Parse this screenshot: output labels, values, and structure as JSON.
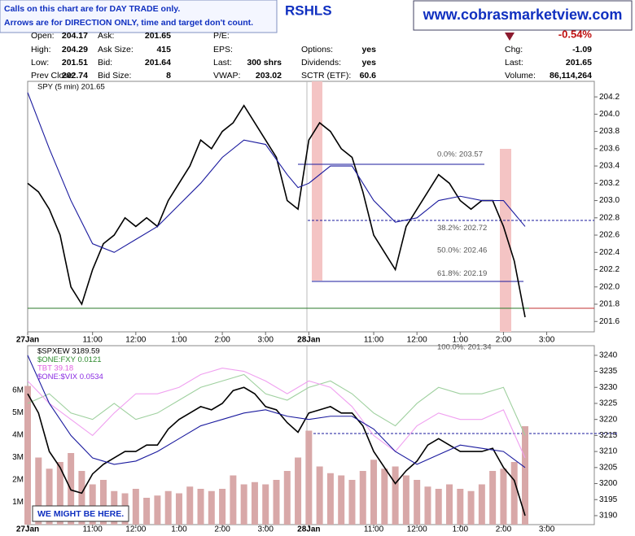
{
  "header": {
    "notes": [
      "Calls on this chart are for DAY TRADE only.",
      "Arrows are for DIRECTION ONLY, time and target don't count."
    ],
    "title": "RSHLS",
    "site": "www.cobrasmarketview.com",
    "quote": {
      "rows": [
        [
          {
            "label": "Open:",
            "value": "204.17"
          },
          {
            "label": "Ask:",
            "value": "201.65"
          },
          {
            "label": "P/E:"
          },
          null,
          {
            "value": "-0.54%"
          }
        ],
        [
          {
            "label": "High:",
            "value": "204.29"
          },
          {
            "label": "Ask Size:",
            "value": "415"
          },
          {
            "label": "EPS:"
          },
          {
            "label": "Options:",
            "value": "yes"
          },
          {
            "label": "Chg:",
            "value": "-1.09"
          }
        ],
        [
          {
            "label": "Low:",
            "value": "201.51"
          },
          {
            "label": "Bid:",
            "value": "201.64"
          },
          {
            "label": "Last:",
            "value": "300 shrs"
          },
          {
            "label": "Dividends:",
            "value": "yes"
          },
          {
            "label": "Last:",
            "value": "201.65"
          }
        ],
        [
          {
            "label": "Prev Close:",
            "value": "202.74"
          },
          {
            "label": "Bid Size:",
            "value": "8"
          },
          {
            "label": "VWAP:",
            "value": "203.02"
          },
          {
            "label": "SCTR (ETF):",
            "value": "60.6"
          },
          {
            "label": "Volume:",
            "value": "86,114,264"
          }
        ]
      ]
    }
  },
  "chart_data": [
    {
      "type": "line",
      "legend": [
        {
          "name": "SPY (5 min) 201.65",
          "color": "#000000"
        }
      ],
      "xlim": [
        0,
        13.1
      ],
      "xticks": [
        {
          "value": 0,
          "label": "27Jan"
        },
        {
          "value": 1.5,
          "label": "11:00"
        },
        {
          "value": 2.5,
          "label": "12:00"
        },
        {
          "value": 3.5,
          "label": "1:00"
        },
        {
          "value": 4.5,
          "label": "2:00"
        },
        {
          "value": 5.5,
          "label": "3:00"
        },
        {
          "value": 6.5,
          "label": "28Jan"
        },
        {
          "value": 8,
          "label": "11:00"
        },
        {
          "value": 9,
          "label": "12:00"
        },
        {
          "value": 10,
          "label": "1:00"
        },
        {
          "value": 11,
          "label": "2:00"
        },
        {
          "value": 12,
          "label": "3:00"
        }
      ],
      "ylim": [
        201.48,
        204.38
      ],
      "yticks": [
        201.6,
        201.8,
        {
          "value": 202,
          "label": "202.0"
        },
        202.2,
        202.4,
        202.6,
        202.8,
        {
          "value": 203,
          "label": "203.0"
        },
        203.2,
        203.4,
        203.6,
        203.8,
        {
          "value": 204,
          "label": "204.0"
        },
        204.2
      ],
      "annotations": [
        {
          "text": "0.0%: 203.57",
          "value": 203.57
        },
        {
          "text": "38.2%: 202.72",
          "value": 202.72
        },
        {
          "text": "50.0%: 202.46",
          "value": 202.46
        },
        {
          "text": "61.8%: 202.19",
          "value": 202.19
        },
        {
          "text": "100.0%: 201.34",
          "value": 201.34
        }
      ],
      "series": [
        {
          "type": "line",
          "color": "#000000",
          "x": [
            0,
            0.25,
            0.5,
            0.75,
            1,
            1.25,
            1.5,
            1.75,
            2,
            2.25,
            2.5,
            2.75,
            3,
            3.25,
            3.5,
            3.75,
            4,
            4.25,
            4.5,
            4.75,
            5,
            5.25,
            5.5,
            5.75,
            6,
            6.25,
            6.5,
            6.75,
            7,
            7.25,
            7.5,
            7.75,
            8,
            8.25,
            8.5,
            8.75,
            9,
            9.25,
            9.5,
            9.75,
            10,
            10.25,
            10.5,
            10.75,
            11,
            11.25,
            11.5
          ],
          "values": [
            203.2,
            203.1,
            202.9,
            202.6,
            202.0,
            201.8,
            202.2,
            202.5,
            202.6,
            202.8,
            202.7,
            202.8,
            202.7,
            203.0,
            203.2,
            203.4,
            203.7,
            203.6,
            203.8,
            203.9,
            204.1,
            203.9,
            203.7,
            203.5,
            203.0,
            202.9,
            203.7,
            203.9,
            203.8,
            203.6,
            203.5,
            203.1,
            202.6,
            202.4,
            202.2,
            202.7,
            202.9,
            203.1,
            203.3,
            203.2,
            203.0,
            202.9,
            203.0,
            203.0,
            202.7,
            202.3,
            201.65
          ]
        },
        {
          "type": "line",
          "color": "#1a1a9e",
          "x": [
            0,
            0.5,
            1,
            1.5,
            2,
            2.5,
            3,
            3.5,
            4,
            4.5,
            5,
            5.5,
            6,
            6.25,
            6.5,
            7,
            7.5,
            8,
            8.5,
            9,
            9.5,
            10,
            10.5,
            11,
            11.5
          ],
          "values": [
            204.25,
            203.6,
            203.0,
            202.5,
            202.4,
            202.55,
            202.7,
            202.95,
            203.2,
            203.5,
            203.7,
            203.65,
            203.3,
            203.15,
            203.2,
            203.4,
            203.4,
            203.0,
            202.75,
            202.8,
            203.0,
            203.05,
            203.0,
            203.0,
            202.7
          ]
        }
      ]
    },
    {
      "type": "line",
      "legend": [
        {
          "name": "$SPXEW 3189.59",
          "color": "#000000"
        },
        {
          "name": "$ONE:FXY 0.0121",
          "color": "#2e8b2e"
        },
        {
          "name": "TBT 39.18",
          "color": "#e060e0"
        },
        {
          "name": "$ONE:$VIX 0.0534",
          "color": "#8a2be2"
        }
      ],
      "annotation": "WE MIGHT BE HERE.",
      "xlim": [
        0,
        13.1
      ],
      "xticks": [
        {
          "value": 0,
          "label": "27Jan"
        },
        {
          "value": 1.5,
          "label": "11:00"
        },
        {
          "value": 2.5,
          "label": "12:00"
        },
        {
          "value": 3.5,
          "label": "1:00"
        },
        {
          "value": 4.5,
          "label": "2:00"
        },
        {
          "value": 5.5,
          "label": "3:00"
        },
        {
          "value": 6.5,
          "label": "28Jan"
        },
        {
          "value": 8,
          "label": "11:00"
        },
        {
          "value": 9,
          "label": "12:00"
        },
        {
          "value": 10,
          "label": "1:00"
        },
        {
          "value": 11,
          "label": "2:00"
        },
        {
          "value": 12,
          "label": "3:00"
        }
      ],
      "ylim": [
        3187.2,
        3243
      ],
      "yticks": [
        3190,
        3195,
        3200,
        3205,
        3210,
        3215,
        3220,
        3225,
        3230,
        3235,
        3240
      ],
      "y2lim": [
        0,
        8
      ],
      "y2ticks": [
        {
          "value": 1,
          "label": "1M"
        },
        {
          "value": 2,
          "label": "2M"
        },
        {
          "value": 3,
          "label": "3M"
        },
        {
          "value": 4,
          "label": "4M"
        },
        {
          "value": 5,
          "label": "5M"
        },
        {
          "value": 6,
          "label": "6M"
        }
      ],
      "series": [
        {
          "type": "bar",
          "axis": "y2",
          "color": "#d8a8a8",
          "x": [
            0,
            0.25,
            0.5,
            0.75,
            1,
            1.25,
            1.5,
            1.75,
            2,
            2.25,
            2.5,
            2.75,
            3,
            3.25,
            3.5,
            3.75,
            4,
            4.25,
            4.5,
            4.75,
            5,
            5.25,
            5.5,
            5.75,
            6,
            6.25,
            6.5,
            6.75,
            7,
            7.25,
            7.5,
            7.75,
            8,
            8.25,
            8.5,
            8.75,
            9,
            9.25,
            9.5,
            9.75,
            10,
            10.25,
            10.5,
            10.75,
            11,
            11.25,
            11.5
          ],
          "values": [
            6.2,
            3.0,
            2.5,
            2.8,
            3.2,
            2.4,
            1.8,
            2.0,
            1.5,
            1.4,
            1.6,
            1.2,
            1.3,
            1.5,
            1.4,
            1.7,
            1.6,
            1.5,
            1.6,
            2.2,
            1.8,
            1.9,
            1.8,
            2.0,
            2.4,
            3.0,
            4.2,
            2.6,
            2.3,
            2.2,
            2.0,
            2.4,
            2.9,
            2.5,
            2.6,
            2.2,
            2.0,
            1.7,
            1.6,
            1.8,
            1.6,
            1.5,
            1.8,
            2.4,
            2.5,
            2.8,
            4.4
          ]
        },
        {
          "type": "line",
          "color": "#9fd09f",
          "x": [
            0,
            0.5,
            1,
            1.5,
            2,
            2.5,
            3,
            3.5,
            4,
            4.5,
            5,
            5.5,
            6,
            6.5,
            7,
            7.5,
            8,
            8.5,
            9,
            9.5,
            10,
            10.5,
            11,
            11.5
          ],
          "values": [
            3225,
            3228,
            3222,
            3220,
            3225,
            3220,
            3222,
            3226,
            3230,
            3232,
            3234,
            3228,
            3226,
            3230,
            3232,
            3228,
            3222,
            3218,
            3225,
            3230,
            3228,
            3228,
            3230,
            3215
          ]
        },
        {
          "type": "line",
          "color": "#f0a0f0",
          "x": [
            0,
            0.5,
            1,
            1.5,
            2,
            2.5,
            3,
            3.5,
            4,
            4.5,
            5,
            5.5,
            6,
            6.5,
            7,
            7.5,
            8,
            8.5,
            9,
            9.5,
            10,
            10.5,
            11,
            11.5
          ],
          "values": [
            3232,
            3225,
            3220,
            3215,
            3222,
            3228,
            3228,
            3230,
            3234,
            3236,
            3235,
            3232,
            3228,
            3232,
            3230,
            3224,
            3215,
            3210,
            3218,
            3222,
            3220,
            3220,
            3223,
            3208
          ]
        },
        {
          "type": "line",
          "color": "#000000",
          "x": [
            0,
            0.25,
            0.5,
            0.75,
            1,
            1.25,
            1.5,
            1.75,
            2,
            2.25,
            2.5,
            2.75,
            3,
            3.25,
            3.5,
            3.75,
            4,
            4.25,
            4.5,
            4.75,
            5,
            5.25,
            5.5,
            5.75,
            6,
            6.25,
            6.5,
            6.75,
            7,
            7.25,
            7.5,
            7.75,
            8,
            8.25,
            8.5,
            8.75,
            9,
            9.25,
            9.5,
            9.75,
            10,
            10.25,
            10.5,
            10.75,
            11,
            11.25,
            11.5
          ],
          "values": [
            3228,
            3222,
            3210,
            3205,
            3198,
            3197,
            3203,
            3206,
            3208,
            3210,
            3210,
            3212,
            3212,
            3217,
            3220,
            3222,
            3224,
            3223,
            3225,
            3229,
            3230,
            3228,
            3224,
            3223,
            3219,
            3216,
            3222,
            3223,
            3224,
            3222,
            3222,
            3218,
            3210,
            3205,
            3200,
            3204,
            3207,
            3212,
            3214,
            3212,
            3210,
            3210,
            3210,
            3211,
            3205,
            3201,
            3190
          ]
        },
        {
          "type": "line",
          "color": "#1a1a9e",
          "x": [
            0,
            0.5,
            1,
            1.5,
            2,
            2.5,
            3,
            3.5,
            4,
            4.5,
            5,
            5.5,
            6,
            6.5,
            7,
            7.5,
            8,
            8.5,
            9,
            9.5,
            10,
            10.5,
            11,
            11.5
          ],
          "values": [
            3240,
            3225,
            3215,
            3208,
            3206,
            3207,
            3210,
            3214,
            3218,
            3220,
            3222,
            3223,
            3221,
            3220,
            3221,
            3221,
            3217,
            3210,
            3206,
            3209,
            3212,
            3211,
            3210,
            3205
          ]
        }
      ]
    }
  ]
}
